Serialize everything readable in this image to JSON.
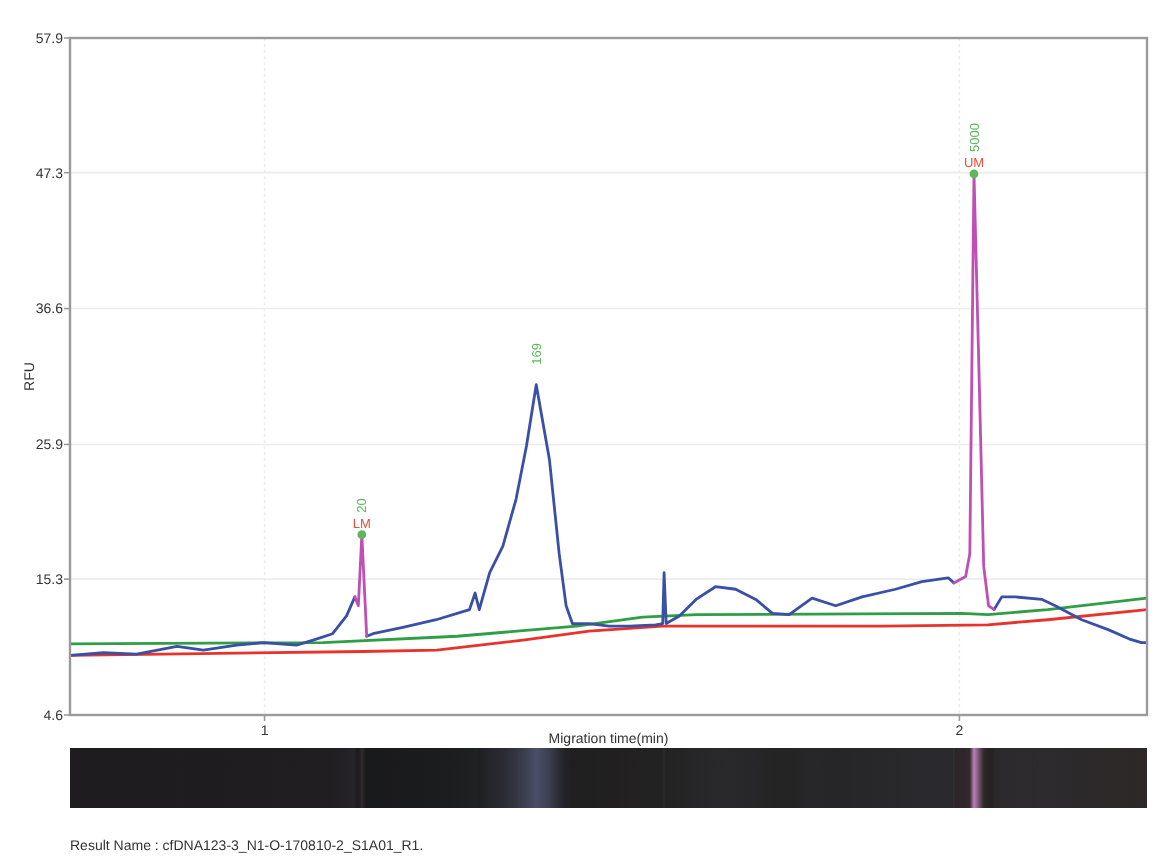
{
  "chart_data": {
    "type": "line",
    "xlabel": "Migration time(min)",
    "ylabel": "RFU",
    "xlim": [
      0.72,
      2.27
    ],
    "xticks": [
      1,
      2
    ],
    "ylim": [
      4.6,
      57.9
    ],
    "yticks": [
      4.6,
      15.3,
      25.9,
      36.6,
      47.3,
      57.9
    ],
    "grid": true,
    "series": [
      {
        "color": "#2f9e44",
        "x": [
          0.72,
          1.084,
          1.277,
          1.449,
          1.544,
          1.622,
          2.004,
          2.041,
          2.127,
          2.27
        ],
        "values": [
          10.2,
          10.3,
          10.8,
          11.6,
          12.3,
          12.5,
          12.6,
          12.5,
          12.9,
          13.8
        ]
      },
      {
        "color": "#e8332c",
        "x": [
          0.72,
          1.142,
          1.248,
          1.372,
          1.467,
          1.573,
          1.889,
          2.041,
          2.127,
          2.27
        ],
        "values": [
          9.3,
          9.6,
          9.7,
          10.5,
          11.2,
          11.6,
          11.6,
          11.7,
          12.1,
          12.9
        ]
      },
      {
        "color": "#3a4fa6",
        "x": [
          0.72,
          0.768,
          0.816,
          0.874,
          0.912,
          0.96,
          0.998,
          1.046,
          1.07,
          1.098,
          1.118,
          1.13,
          1.14,
          1.147,
          1.156,
          1.199,
          1.247,
          1.295,
          1.303,
          1.309,
          1.324,
          1.343,
          1.362,
          1.377,
          1.391,
          1.41,
          1.424,
          1.434,
          1.443,
          1.467,
          1.496,
          1.525,
          1.563,
          1.573,
          1.575,
          1.578,
          1.597,
          1.621,
          1.649,
          1.678,
          1.707,
          1.731,
          1.755,
          1.788,
          1.822,
          1.86,
          1.908,
          1.946,
          1.984,
          1.992,
          2.021,
          2.05,
          2.061,
          2.08,
          2.119,
          2.138,
          2.176,
          2.215,
          2.244,
          2.262,
          2.27
        ],
        "values": [
          9.3,
          9.5,
          9.4,
          10.0,
          9.7,
          10.1,
          10.3,
          10.1,
          10.5,
          11.0,
          12.4,
          13.9,
          null,
          10.8,
          11.0,
          11.5,
          12.1,
          12.9,
          14.2,
          12.9,
          15.8,
          17.9,
          21.6,
          25.8,
          30.6,
          24.7,
          17.3,
          13.2,
          11.8,
          11.8,
          11.6,
          11.6,
          11.7,
          11.8,
          15.8,
          11.8,
          12.4,
          13.7,
          14.7,
          14.5,
          13.7,
          12.6,
          12.5,
          13.8,
          13.2,
          13.9,
          14.5,
          15.1,
          15.4,
          15.0,
          null,
          12.9,
          13.9,
          13.9,
          13.7,
          13.2,
          12.1,
          11.3,
          10.6,
          10.3,
          10.3
        ]
      },
      {
        "color": "#c04fb5",
        "x": [
          1.13,
          1.135,
          1.14,
          1.147,
          1.5,
          1.992,
          2.009,
          2.015,
          2.021,
          2.028,
          2.035,
          2.042,
          2.05
        ],
        "values": [
          13.9,
          13.2,
          18.8,
          10.8,
          null,
          15.0,
          15.5,
          17.3,
          47.2,
          32.1,
          16.3,
          13.2,
          12.9
        ]
      },
      {
        "type": "scatter",
        "color": "#5cb85c",
        "marker": "circle",
        "x": [
          1.14,
          2.021
        ],
        "values": [
          18.8,
          47.2
        ]
      }
    ],
    "annotations": [
      {
        "text": "20",
        "x": 1.14,
        "y": 18.8
      },
      {
        "text": "LM",
        "x": 1.14,
        "y": 18.8
      },
      {
        "text": "169",
        "x": 1.391,
        "y": 30.6
      },
      {
        "text": "5000",
        "x": 2.021,
        "y": 47.2
      },
      {
        "text": "UM",
        "x": 2.021,
        "y": 47.2
      },
      "Result Name : cfDNA123-3_N1-O-170810-2_S1A01_R1."
    ]
  }
}
